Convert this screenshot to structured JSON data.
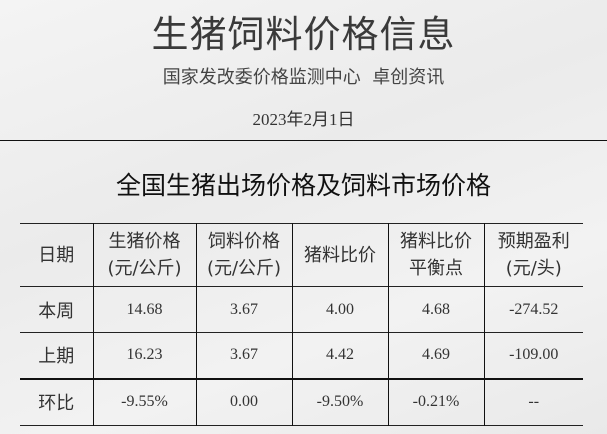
{
  "header": {
    "title": "生猪饲料价格信息",
    "subtitle": "国家发改委价格监测中心  卓创资讯",
    "date": "2023年2月1日"
  },
  "section_title": "全国生猪出场价格及饲料市场价格",
  "table": {
    "columns": [
      [
        "日期",
        ""
      ],
      [
        "生猪价格",
        "(元/公斤)"
      ],
      [
        "饲料价格",
        "(元/公斤)"
      ],
      [
        "猪料比价",
        ""
      ],
      [
        "猪料比价",
        "平衡点"
      ],
      [
        "预期盈利",
        "(元/头)"
      ]
    ],
    "rows": [
      [
        "本周",
        "14.68",
        "3.67",
        "4.00",
        "4.68",
        "-274.52"
      ],
      [
        "上期",
        "16.23",
        "3.67",
        "4.42",
        "4.69",
        "-109.00"
      ],
      [
        "环比",
        "-9.55%",
        "0.00",
        "-9.50%",
        "-0.21%",
        "--"
      ]
    ]
  }
}
